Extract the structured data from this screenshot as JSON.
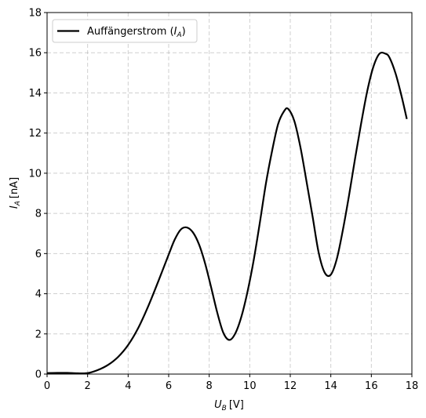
{
  "chart_data": {
    "type": "line",
    "title": "",
    "xlabel": {
      "main": "U",
      "sub": "B",
      "unit": "[V]"
    },
    "ylabel": {
      "main": "I",
      "sub": "A",
      "unit": "[nA]"
    },
    "xlim": [
      0,
      18
    ],
    "ylim": [
      0,
      18
    ],
    "xticks": [
      "0",
      "2",
      "4",
      "6",
      "8",
      "10",
      "12",
      "14",
      "16",
      "18"
    ],
    "yticks": [
      "0",
      "2",
      "4",
      "6",
      "8",
      "10",
      "12",
      "14",
      "16",
      "18"
    ],
    "grid": true,
    "legend_position": "top-left",
    "series": [
      {
        "name": "Auffängerstrom",
        "name_symbol": {
          "main": "I",
          "sub": "A"
        },
        "color": "#000000",
        "x": [
          0,
          0.5,
          1,
          1.5,
          2,
          2.5,
          3,
          3.5,
          4,
          4.5,
          5,
          5.5,
          6,
          6.3,
          6.6,
          6.9,
          7.2,
          7.5,
          7.8,
          8.1,
          8.4,
          8.7,
          9.0,
          9.3,
          9.6,
          9.9,
          10.2,
          10.5,
          10.8,
          11.1,
          11.4,
          11.7,
          11.9,
          12.2,
          12.5,
          12.8,
          13.1,
          13.4,
          13.7,
          14.0,
          14.3,
          14.6,
          14.9,
          15.2,
          15.5,
          15.8,
          16.1,
          16.4,
          16.7,
          16.9,
          17.2,
          17.5,
          17.75
        ],
        "y": [
          0.05,
          0.06,
          0.06,
          0.04,
          0.05,
          0.2,
          0.45,
          0.85,
          1.45,
          2.3,
          3.4,
          4.65,
          5.95,
          6.7,
          7.2,
          7.3,
          7.05,
          6.45,
          5.5,
          4.3,
          3.05,
          2.05,
          1.7,
          2.05,
          2.9,
          4.15,
          5.7,
          7.55,
          9.5,
          11.1,
          12.45,
          13.1,
          13.2,
          12.6,
          11.3,
          9.6,
          7.85,
          6.05,
          5.05,
          4.95,
          5.75,
          7.2,
          8.9,
          10.75,
          12.5,
          14.1,
          15.3,
          15.95,
          15.95,
          15.75,
          14.95,
          13.8,
          12.7
        ]
      }
    ]
  }
}
